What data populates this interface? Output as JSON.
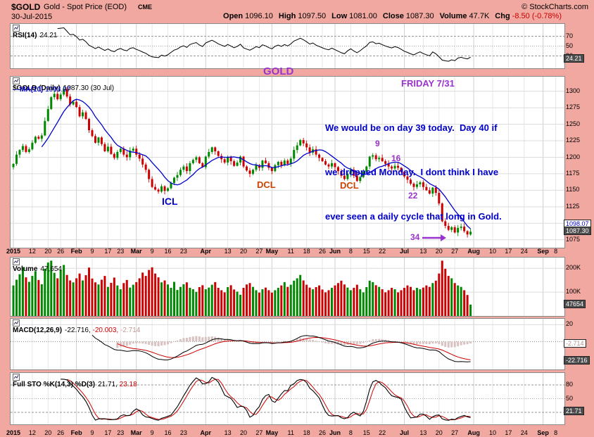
{
  "header": {
    "symbol": "$GOLD",
    "name": "Gold - Spot Price (EOD)",
    "exchange": "CME",
    "copyright": "© StockCharts.com",
    "date": "30-Jul-2015",
    "quote": [
      {
        "label": "Open",
        "value": "1096.10"
      },
      {
        "label": "High",
        "value": "1097.50"
      },
      {
        "label": "Low",
        "value": "1081.00"
      },
      {
        "label": "Close",
        "value": "1087.30"
      },
      {
        "label": "Volume",
        "value": "47.7K"
      },
      {
        "label": "Chg",
        "value": "-8.50 (-0.78%)",
        "color": "#cc0000"
      }
    ]
  },
  "panels": {
    "rsi": {
      "label": "RSI(14)",
      "value": "24.21",
      "axis": [
        "70",
        "50",
        "30"
      ],
      "badge": "24.21"
    },
    "price": {
      "label": "$GOLD (Daily)",
      "value": "1087.30 (30 Jul)",
      "ma_label": "MA(10)",
      "ma_value": "1098.07",
      "axis": [
        "1300",
        "1275",
        "1250",
        "1225",
        "1200",
        "1175",
        "1150",
        "1125",
        "1100",
        "1075"
      ],
      "badge_ma": "1098.07",
      "badge_last": "1087.30"
    },
    "volume": {
      "label": "Volume",
      "value": "47,654",
      "axis": [
        "200K",
        "100K"
      ],
      "badge": "47654"
    },
    "macd": {
      "label": "MACD(12,26,9)",
      "values": [
        {
          "text": "-22.716,",
          "color": "#000000"
        },
        {
          "text": "-20.003,",
          "color": "#cc0000"
        },
        {
          "text": "-2.714",
          "color": "#c09999"
        }
      ],
      "axis": [
        "20"
      ],
      "badge_hist": "-2.714",
      "badge_macd": "-22.716"
    },
    "sto": {
      "label": "Full STO %K(14,3) %D(3)",
      "values": [
        {
          "text": "21.71,",
          "color": "#000000"
        },
        {
          "text": "23.18",
          "color": "#cc0000"
        }
      ],
      "axis": [
        "80",
        "50",
        "20"
      ],
      "badge": "21.71"
    }
  },
  "annotations": {
    "gold": "GOLD",
    "friday": "FRIDAY 7/31",
    "note_lines": [
      "We would be on day 39 today.  Day 40 if",
      "we dropped Monday.  I dont think I have",
      "ever seen a daily cycle that long in Gold."
    ],
    "icl": "ICL",
    "dcl1": "DCL",
    "dcl2": "DCL",
    "d9": "9",
    "d16": "16",
    "d22": "22",
    "d34": "34"
  },
  "colors": {
    "frame": "#f0a8a0",
    "candle_up": "#008800",
    "candle_down": "#cc0000",
    "ma": "#0000cc",
    "signal": "#cc0000",
    "histogram_fill": "#d8c2c2",
    "purple": "#9933cc",
    "note_blue": "#0000cc",
    "icl_blue": "#0000cc",
    "dcl_orange": "#cc4400",
    "chg_red": "#cc0000"
  },
  "chart_data": [
    {
      "type": "candlestick",
      "title": "$GOLD (Daily) 1087.30 (30 Jul)",
      "overlay": "MA(10) 1098.07",
      "ylabel": "price",
      "ylim": [
        1075,
        1300
      ],
      "grid": true,
      "x_unit": "trading day, 2-Jan-2015 to 31-Jul-2015",
      "closes": [
        1190,
        1204,
        1211,
        1217,
        1208,
        1212,
        1222,
        1231,
        1228,
        1233,
        1255,
        1273,
        1291,
        1296,
        1288,
        1295,
        1303,
        1292,
        1280,
        1284,
        1276,
        1262,
        1268,
        1258,
        1241,
        1232,
        1222,
        1230,
        1220,
        1209,
        1216,
        1205,
        1199,
        1208,
        1213,
        1204,
        1200,
        1210,
        1213,
        1204,
        1198,
        1189,
        1181,
        1167,
        1155,
        1151,
        1148,
        1156,
        1149,
        1153,
        1161,
        1169,
        1173,
        1181,
        1186,
        1179,
        1191,
        1196,
        1200,
        1191,
        1185,
        1201,
        1208,
        1215,
        1209,
        1202,
        1197,
        1192,
        1200,
        1194,
        1187,
        1192,
        1201,
        1186,
        1180,
        1175,
        1181,
        1188,
        1184,
        1195,
        1191,
        1184,
        1179,
        1188,
        1193,
        1188,
        1195,
        1190,
        1198,
        1211,
        1218,
        1226,
        1221,
        1215,
        1207,
        1212,
        1204,
        1199,
        1194,
        1189,
        1186,
        1191,
        1185,
        1179,
        1172,
        1167,
        1175,
        1181,
        1172,
        1164,
        1170,
        1178,
        1186,
        1201,
        1203,
        1197,
        1199,
        1194,
        1190,
        1186,
        1183,
        1187,
        1184,
        1178,
        1171,
        1166,
        1160,
        1155,
        1159,
        1162,
        1155,
        1150,
        1145,
        1154,
        1146,
        1130,
        1103,
        1096,
        1090,
        1094,
        1086,
        1093,
        1095,
        1088,
        1083,
        1087.3
      ],
      "last_bar": {
        "open": 1096.1,
        "high": 1097.5,
        "low": 1081.0,
        "close": 1087.3
      },
      "x_labels": [
        {
          "t": "2015",
          "i": 0,
          "m": true
        },
        {
          "t": "12",
          "i": 6
        },
        {
          "t": "20",
          "i": 11
        },
        {
          "t": "26",
          "i": 15
        },
        {
          "t": "Feb",
          "i": 20,
          "m": true
        },
        {
          "t": "9",
          "i": 25
        },
        {
          "t": "17",
          "i": 30
        },
        {
          "t": "23",
          "i": 34
        },
        {
          "t": "Mar",
          "i": 39,
          "m": true
        },
        {
          "t": "9",
          "i": 44
        },
        {
          "t": "16",
          "i": 49
        },
        {
          "t": "23",
          "i": 54
        },
        {
          "t": "Apr",
          "i": 61,
          "m": true
        },
        {
          "t": "13",
          "i": 68
        },
        {
          "t": "20",
          "i": 73
        },
        {
          "t": "27",
          "i": 78
        },
        {
          "t": "May",
          "i": 82,
          "m": true
        },
        {
          "t": "11",
          "i": 88
        },
        {
          "t": "18",
          "i": 93
        },
        {
          "t": "26",
          "i": 98
        },
        {
          "t": "Jun",
          "i": 102,
          "m": true
        },
        {
          "t": "8",
          "i": 107
        },
        {
          "t": "15",
          "i": 112
        },
        {
          "t": "22",
          "i": 117
        },
        {
          "t": "Jul",
          "i": 124,
          "m": true
        },
        {
          "t": "13",
          "i": 130
        },
        {
          "t": "20",
          "i": 135
        },
        {
          "t": "27",
          "i": 140
        },
        {
          "t": "Aug",
          "i": 146,
          "m": true
        },
        {
          "t": "10",
          "i": 152
        },
        {
          "t": "17",
          "i": 157
        },
        {
          "t": "24",
          "i": 162
        },
        {
          "t": "Sep",
          "i": 168,
          "m": true
        },
        {
          "t": "8",
          "i": 172
        }
      ]
    },
    {
      "type": "bar",
      "title": "Volume 47,654",
      "ylim": [
        0,
        200
      ],
      "y_unit": "thousands of contracts",
      "values_k": [
        128,
        152,
        175,
        205,
        162,
        143,
        168,
        188,
        151,
        133,
        198,
        224,
        232,
        181,
        158,
        192,
        214,
        172,
        149,
        141,
        158,
        178,
        149,
        171,
        203,
        157,
        141,
        132,
        152,
        168,
        122,
        139,
        161,
        128,
        112,
        138,
        151,
        119,
        131,
        142,
        158,
        182,
        168,
        193,
        204,
        178,
        162,
        141,
        149,
        132,
        118,
        143,
        109,
        122,
        133,
        141,
        118,
        112,
        101,
        121,
        129,
        112,
        119,
        131,
        142,
        118,
        108,
        99,
        121,
        129,
        111,
        102,
        89,
        118,
        132,
        138,
        122,
        108,
        98,
        112,
        119,
        108,
        98,
        108,
        118,
        128,
        142,
        122,
        131,
        148,
        158,
        172,
        149,
        131,
        119,
        112,
        121,
        128,
        111,
        99,
        108,
        118,
        128,
        138,
        148,
        132,
        119,
        108,
        118,
        131,
        112,
        99,
        121,
        148,
        142,
        129,
        122,
        112,
        99,
        108,
        118,
        112,
        99,
        108,
        118,
        128,
        122,
        108,
        118,
        112,
        119,
        128,
        122,
        138,
        148,
        178,
        232,
        198,
        168,
        158,
        138,
        128,
        122,
        108,
        88,
        47.654
      ]
    },
    {
      "type": "line",
      "title": "RSI(14)",
      "last": 24.21,
      "levels": [
        70,
        50,
        30
      ],
      "computed_from": "closes"
    },
    {
      "type": "line",
      "title": "MACD(12,26,9)",
      "last": [
        -22.716,
        -20.003,
        -2.714
      ],
      "computed_from": "closes"
    },
    {
      "type": "line",
      "title": "Full STO %K(14,3) %D(3)",
      "last": [
        21.71,
        23.18
      ],
      "levels": [
        80,
        50,
        20
      ],
      "computed_from": "closes"
    }
  ]
}
